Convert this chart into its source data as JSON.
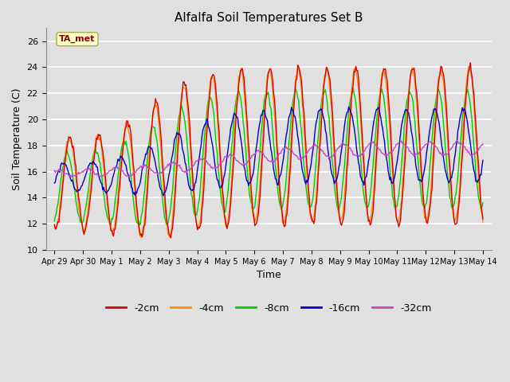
{
  "title": "Alfalfa Soil Temperatures Set B",
  "xlabel": "Time",
  "ylabel": "Soil Temperature (C)",
  "ylim": [
    10,
    27
  ],
  "yticks": [
    10,
    12,
    14,
    16,
    18,
    20,
    22,
    24,
    26
  ],
  "background_color": "#e0e0e0",
  "plot_bg_color": "#e0e0e0",
  "grid_color": "white",
  "annotation_text": "TA_met",
  "annotation_color": "#8b0000",
  "annotation_bg": "#ffffcc",
  "annotation_border": "#aaaa44",
  "line_colors": {
    "-2cm": "#dd0000",
    "-4cm": "#ff8c00",
    "-8cm": "#00cc00",
    "-16cm": "#0000cc",
    "-32cm": "#cc44cc"
  },
  "legend_labels": [
    "-2cm",
    "-4cm",
    "-8cm",
    "-16cm",
    "-32cm"
  ],
  "x_tick_labels": [
    "Apr 29",
    "Apr 30",
    "May 1",
    "May 2",
    "May 3",
    "May 4",
    "May 5",
    "May 6",
    "May 7",
    "May 8",
    "May 9",
    "May 10",
    "May 11",
    "May 12",
    "May 13",
    "May 14"
  ],
  "num_points": 480
}
